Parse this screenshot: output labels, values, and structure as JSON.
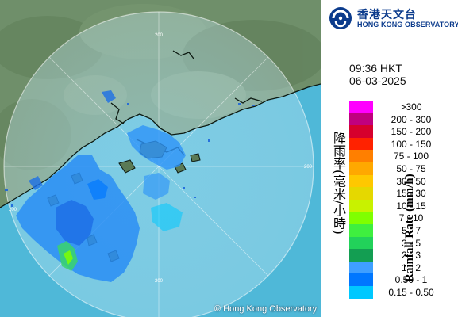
{
  "map": {
    "copyright": "© Hong Kong Observatory",
    "range_rings": [
      {
        "label": "200"
      },
      {
        "label": "200"
      },
      {
        "label": "200"
      },
      {
        "label": "200"
      }
    ],
    "colors": {
      "land": "#6f8f6a",
      "sea": "#4fb8d8",
      "radar_coverage": "#9cd7ea",
      "coast_line": "#0d1a12"
    }
  },
  "logo": {
    "zh": "香港天文台",
    "en": "HONG KONG OBSERVATORY",
    "icon": "hko-logo-icon",
    "color": "#0b3b8c"
  },
  "timestamp": {
    "time": "09:36 HKT",
    "date": "06-03-2025"
  },
  "legend": {
    "title_zh": "降雨率(毫米/小時)",
    "title_en": "Rainfall Rate (mm/h)",
    "items": [
      {
        "label": ">300",
        "color": "#ff00ff"
      },
      {
        "label": "200 - 300",
        "color": "#c0007f"
      },
      {
        "label": "150 - 200",
        "color": "#d6002d"
      },
      {
        "label": "100 - 150",
        "color": "#ff2200"
      },
      {
        "label": "75 - 100",
        "color": "#ff7f00"
      },
      {
        "label": "50 - 75",
        "color": "#ffa800"
      },
      {
        "label": "30 - 50",
        "color": "#ffc800"
      },
      {
        "label": "15 - 30",
        "color": "#e5d800"
      },
      {
        "label": "10 - 15",
        "color": "#c8f200"
      },
      {
        "label": "7 - 10",
        "color": "#7fff00"
      },
      {
        "label": "5 - 7",
        "color": "#3fef3f"
      },
      {
        "label": "3 - 5",
        "color": "#22d25a"
      },
      {
        "label": "2 - 3",
        "color": "#139e52"
      },
      {
        "label": "1 - 2",
        "color": "#3f9fff"
      },
      {
        "label": "0.50 - 1",
        "color": "#0077ff"
      },
      {
        "label": "0.15 - 0.50",
        "color": "#00c8ff"
      }
    ]
  }
}
